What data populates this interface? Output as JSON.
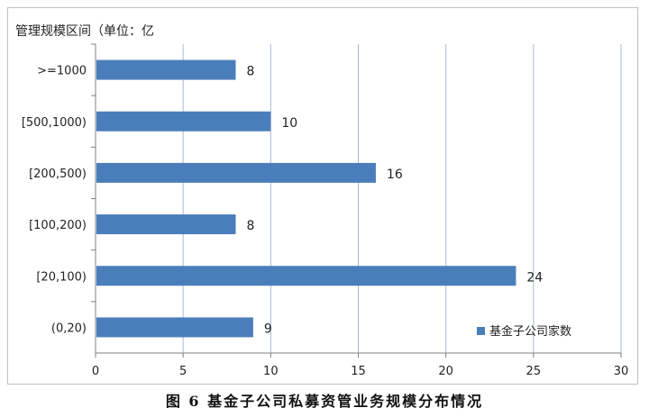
{
  "chart_data": {
    "type": "bar",
    "orientation": "horizontal",
    "title": "图 6  基金子公司私募资管业务规模分布情况",
    "ylabel": "管理规模区间（单位：亿",
    "categories": [
      ">=1000",
      "[500,1000)",
      "[200,500)",
      "[100,200)",
      "[20,100)",
      "(0,20)"
    ],
    "series": [
      {
        "name": "基金子公司家数",
        "values": [
          8,
          10,
          16,
          8,
          24,
          9
        ]
      }
    ],
    "xlim": [
      0,
      30
    ],
    "xticks": [
      0,
      5,
      10,
      15,
      20,
      25,
      30
    ],
    "grid": true,
    "legend_position": "bottom-right",
    "colors": {
      "bar": "#4a7ebb",
      "grid": "#a9b7d6",
      "axis": "#7f7f7f"
    }
  }
}
